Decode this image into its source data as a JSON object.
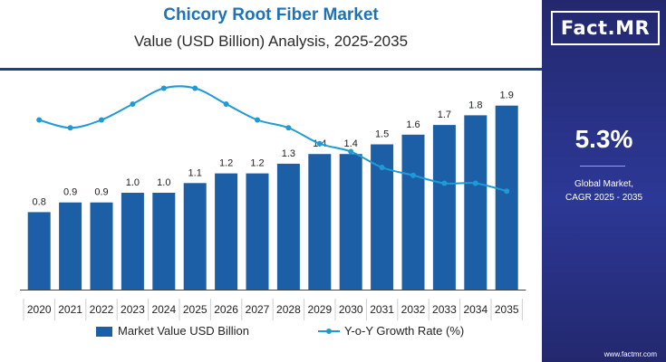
{
  "header": {
    "title": "Chicory Root Fiber Market",
    "subtitle": "Value (USD Billion) Analysis, 2025-2035"
  },
  "sidebar": {
    "logo_text": "Fact.MR",
    "cagr_value": "5.3%",
    "cagr_label_line1": "Global Market,",
    "cagr_label_line2": "CAGR 2025 - 2035",
    "website": "www.factmr.com"
  },
  "colors": {
    "bar": "#1d5fa6",
    "line": "#1e9ad6",
    "sidebar": "#27307f"
  },
  "chart_data": {
    "type": "bar",
    "categories": [
      "2020",
      "2021",
      "2022",
      "2023",
      "2024",
      "2025",
      "2026",
      "2027",
      "2028",
      "2029",
      "2030",
      "2031",
      "2032",
      "2033",
      "2034",
      "2035"
    ],
    "series": [
      {
        "name": "Market Value USD Billion",
        "type": "bar",
        "values": [
          0.8,
          0.9,
          0.9,
          1.0,
          1.0,
          1.1,
          1.2,
          1.2,
          1.3,
          1.4,
          1.4,
          1.5,
          1.6,
          1.7,
          1.8,
          1.9
        ],
        "labels": [
          "0.8",
          "0.9",
          "0.9",
          "1.0",
          "1.0",
          "1.1",
          "1.2",
          "1.2",
          "1.3",
          "1.4",
          "1.4",
          "1.5",
          "1.6",
          "1.7",
          "1.8",
          "1.9"
        ]
      },
      {
        "name": "Y-o-Y Growth Rate (%)",
        "type": "line",
        "values": [
          5.4,
          5.3,
          5.4,
          5.6,
          5.8,
          5.8,
          5.6,
          5.4,
          5.3,
          5.1,
          5.0,
          4.8,
          4.7,
          4.6,
          4.6,
          4.5
        ]
      }
    ],
    "ylim": [
      0,
      2.0
    ],
    "ylim_growth": [
      3.6,
      6.0
    ],
    "grid": false,
    "legend_position": "bottom"
  }
}
